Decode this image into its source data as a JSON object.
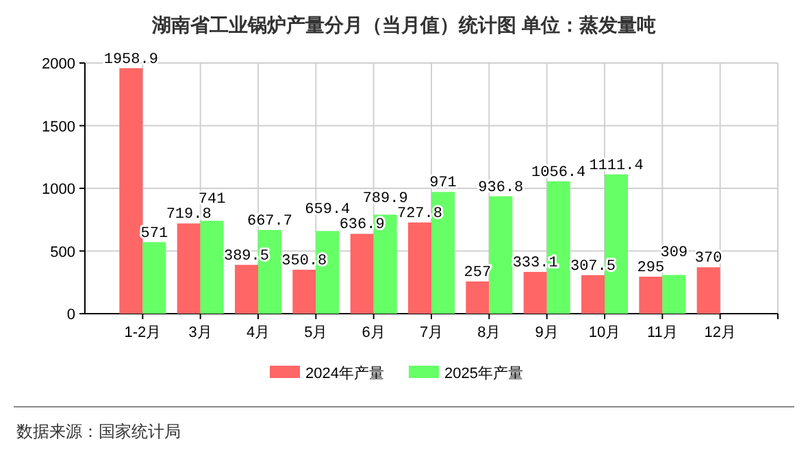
{
  "chart_data": {
    "type": "bar",
    "title": "湖南省工业锅炉产量分月（当月值）统计图 单位：蒸发量吨",
    "categories": [
      "1-2月",
      "3月",
      "4月",
      "5月",
      "6月",
      "7月",
      "8月",
      "9月",
      "10月",
      "11月",
      "12月"
    ],
    "series": [
      {
        "name": "2024年产量",
        "color": "#ff6666",
        "values": [
          1958.9,
          719.8,
          389.5,
          350.8,
          636.9,
          727.8,
          257,
          333.1,
          307.5,
          295,
          370
        ]
      },
      {
        "name": "2025年产量",
        "color": "#66ff66",
        "values": [
          571,
          741,
          667.7,
          659.4,
          789.9,
          971,
          936.8,
          1056.4,
          1111.4,
          309,
          null
        ]
      }
    ],
    "ylim": [
      0,
      2000
    ],
    "yticks": [
      0,
      500,
      1000,
      1500,
      2000
    ],
    "grid": true,
    "legend": "bottom",
    "data_labels": true,
    "annotations": [
      "数据来源：国家统计局"
    ]
  }
}
